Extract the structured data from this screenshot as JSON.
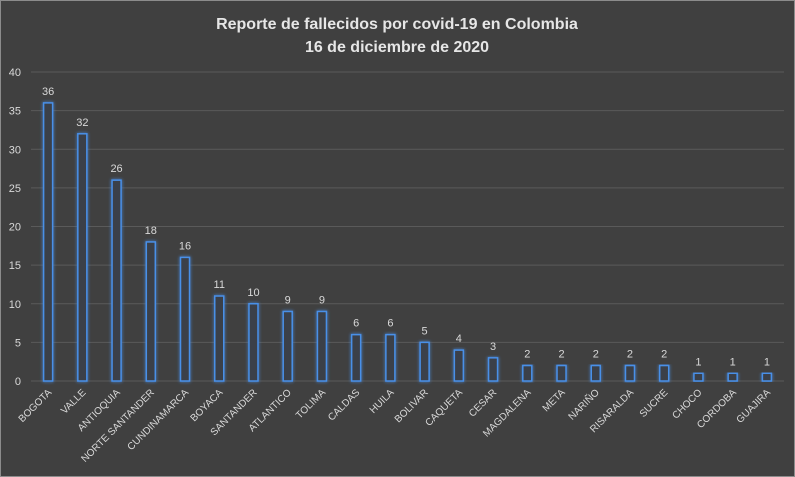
{
  "chart_data": {
    "type": "bar",
    "title": "Reporte de fallecidos por covid-19 en Colombia",
    "subtitle": "16 de diciembre de 2020",
    "categories": [
      "BOGOTA",
      "VALLE",
      "ANTIOQUIA",
      "NORTE SANTANDER",
      "CUNDINAMARCA",
      "BOYACA",
      "SANTANDER",
      "ATLANTICO",
      "TOLIMA",
      "CALDAS",
      "HUILA",
      "BOLIVAR",
      "CAQUETA",
      "CESAR",
      "MAGDALENA",
      "META",
      "NARIÑO",
      "RISARALDA",
      "SUCRE",
      "CHOCO",
      "CORDOBA",
      "GUAJIRA"
    ],
    "values": [
      36,
      32,
      26,
      18,
      16,
      11,
      10,
      9,
      9,
      6,
      6,
      5,
      4,
      3,
      2,
      2,
      2,
      2,
      2,
      1,
      1,
      1
    ],
    "ylim": [
      0,
      40
    ],
    "yticks": [
      0,
      5,
      10,
      15,
      20,
      25,
      30,
      35,
      40
    ],
    "grid": true,
    "data_labels": true,
    "colors": {
      "background": "#404040",
      "bar_fill": "#3a3f4a",
      "bar_stroke": "#4a90e8",
      "bar_glow": "#1f5fb0",
      "gridline": "#5a5a5a",
      "text": "#d9d9d9"
    }
  }
}
